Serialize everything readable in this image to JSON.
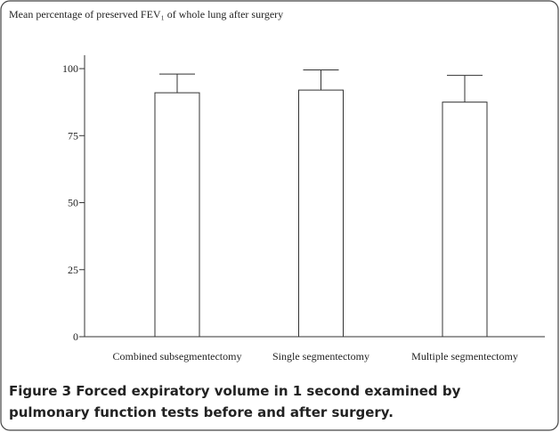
{
  "chart_data": {
    "type": "bar",
    "title": "Mean percentage of preserved FEV₁ of whole lung after surgery",
    "categories": [
      "Combined subsegmentectomy",
      "Single segmentectomy",
      "Multiple segmentectomy"
    ],
    "values": [
      91,
      92,
      87.5
    ],
    "errors": [
      7,
      7.5,
      10
    ],
    "color": "#ffffff",
    "ylim": [
      0,
      105
    ],
    "yticks": [
      0,
      25,
      50,
      75,
      100
    ],
    "grid": false
  },
  "caption": {
    "label": "Figure 3",
    "text": "Forced expiratory volume in 1 second examined by pulmonary function tests before and after surgery."
  }
}
